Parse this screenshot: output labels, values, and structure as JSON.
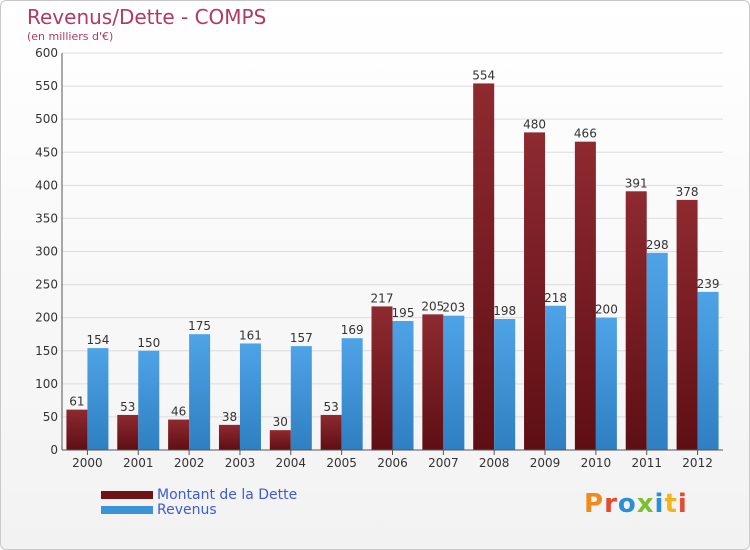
{
  "header": {
    "title": "Revenus/Dette - COMPS",
    "subtitle": "(en milliers d'€)"
  },
  "chart_data": {
    "type": "bar",
    "title": "Revenus/Dette - COMPS",
    "subtitle": "(en milliers d'€)",
    "categories": [
      "2000",
      "2001",
      "2002",
      "2003",
      "2004",
      "2005",
      "2006",
      "2007",
      "2008",
      "2009",
      "2010",
      "2011",
      "2012"
    ],
    "series": [
      {
        "name": "Montant de la Dette",
        "color": "#7b1c22",
        "values": [
          61,
          53,
          46,
          38,
          30,
          53,
          217,
          205,
          554,
          480,
          466,
          391,
          378
        ]
      },
      {
        "name": "Revenus",
        "color": "#3d93d8",
        "values": [
          154,
          150,
          175,
          161,
          157,
          169,
          195,
          203,
          198,
          218,
          200,
          298,
          239
        ]
      }
    ],
    "ylim": [
      0,
      600
    ],
    "ytick_step": 50,
    "grid": "horizontal",
    "legend": "bottom-left"
  },
  "logo": {
    "text": "Proxiti",
    "colors": [
      "#f08a1c",
      "#e64a2e",
      "#2b8fd6",
      "#7cbf2f",
      "#2b8fd6",
      "#f0b61c",
      "#e64a2e"
    ]
  }
}
